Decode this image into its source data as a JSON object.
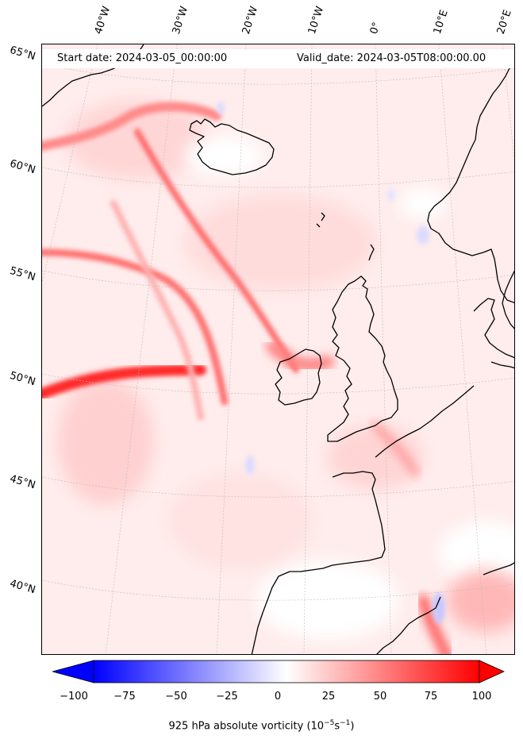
{
  "header": {
    "start_date": "Start date: 2024-03-05_00:00:00",
    "valid_date": "Valid_date: 2024-03-05T08:00:00.00"
  },
  "longitude_labels": [
    "40°W",
    "30°W",
    "20°W",
    "10°W",
    "0°",
    "10°E",
    "20°E"
  ],
  "latitude_labels": [
    "65°N",
    "60°N",
    "55°N",
    "50°N",
    "45°N",
    "40°N"
  ],
  "colorbar": {
    "ticks": [
      "−100",
      "−75",
      "−50",
      "−25",
      "0",
      "25",
      "50",
      "75",
      "100"
    ],
    "min": -100,
    "max": 100,
    "label_prefix": "925 hPa absolute vorticity (10",
    "label_exp1": "−5",
    "label_mid": "s",
    "label_exp2": "−1",
    "label_suffix": ")",
    "colors": {
      "negative": "#0000ff",
      "zero": "#ffffff",
      "positive": "#ff0000"
    }
  },
  "colors": {
    "background_field": "#ffecec",
    "streak": "#ff5555",
    "land_line": "#000000",
    "gridline": "#bbbbbb"
  }
}
